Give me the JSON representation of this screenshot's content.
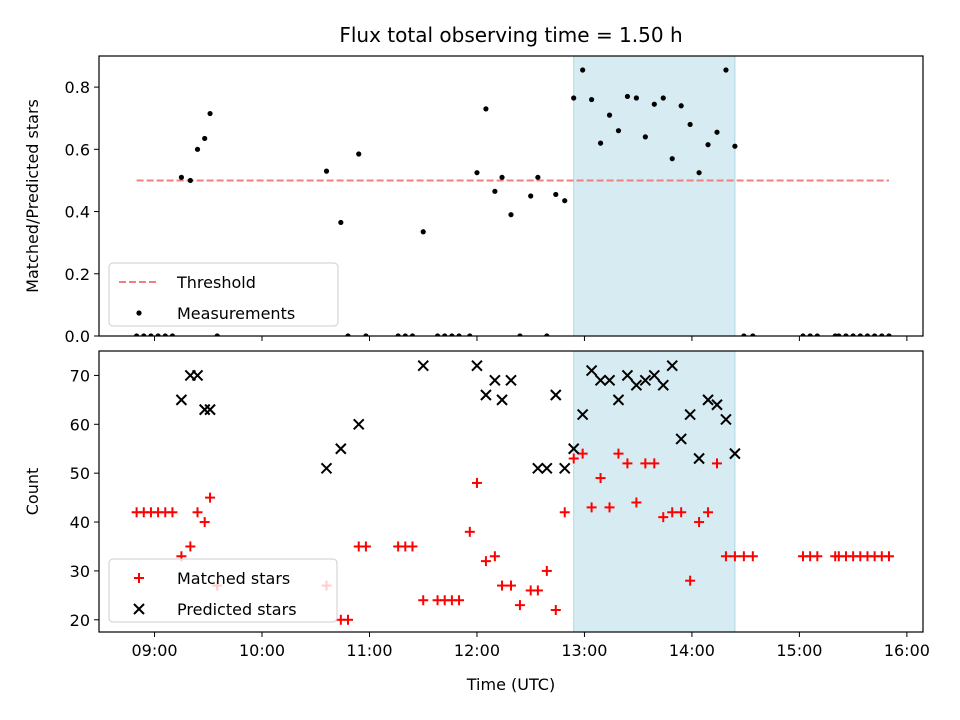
{
  "figure": {
    "title": "Flux total observing time = 1.50 h"
  },
  "chart_data": [
    {
      "type": "scatter",
      "ylabel": "Matched/Predicted stars",
      "ylim": [
        0,
        0.9
      ],
      "yticks": [
        0.0,
        0.2,
        0.4,
        0.6,
        0.8
      ],
      "ytick_labels": [
        "0.0",
        "0.2",
        "0.4",
        "0.6",
        "0.8"
      ],
      "xlim": [
        "08:29",
        "16:09"
      ],
      "xticks": [
        "09:00",
        "10:00",
        "11:00",
        "12:00",
        "13:00",
        "14:00",
        "15:00",
        "16:00"
      ],
      "shaded_interval": [
        "12:54",
        "14:24"
      ],
      "shaded_color": "#add8e6",
      "legend_position": "lower-left",
      "series": [
        {
          "name": "Threshold",
          "style": "dashed-line",
          "color": "#f08080",
          "x": [
            "08:50",
            "15:50"
          ],
          "y": [
            0.5,
            0.5
          ]
        },
        {
          "name": "Measurements",
          "style": "dot",
          "color": "#000000",
          "x": [
            "08:50",
            "08:54",
            "08:58",
            "09:02",
            "09:06",
            "09:10",
            "09:15",
            "09:20",
            "09:24",
            "09:28",
            "09:31",
            "09:35",
            "10:36",
            "10:44",
            "10:48",
            "10:54",
            "10:58",
            "11:16",
            "11:20",
            "11:24",
            "11:30",
            "11:38",
            "11:42",
            "11:46",
            "11:50",
            "11:56",
            "12:00",
            "12:05",
            "12:10",
            "12:14",
            "12:19",
            "12:24",
            "12:30",
            "12:34",
            "12:39",
            "12:44",
            "12:49",
            "12:54",
            "12:59",
            "13:04",
            "13:09",
            "13:14",
            "13:19",
            "13:24",
            "13:29",
            "13:34",
            "13:39",
            "13:44",
            "13:49",
            "13:54",
            "13:59",
            "14:04",
            "14:09",
            "14:14",
            "14:19",
            "14:24",
            "14:29",
            "14:34",
            "15:02",
            "15:06",
            "15:10",
            "15:20",
            "15:22",
            "15:26",
            "15:30",
            "15:34",
            "15:38",
            "15:42",
            "15:46",
            "15:50"
          ],
          "y": [
            0,
            0,
            0,
            0,
            0,
            0,
            0.51,
            0.5,
            0.6,
            0.635,
            0.715,
            0,
            0.53,
            0.365,
            0,
            0.585,
            0,
            0,
            0,
            0,
            0.335,
            0,
            0,
            0,
            0,
            0,
            0.525,
            0.73,
            0.465,
            0.51,
            0.39,
            0,
            0.45,
            0.51,
            0,
            0.455,
            0.435,
            0.765,
            0.855,
            0.76,
            0.62,
            0.71,
            0.66,
            0.77,
            0.765,
            0.64,
            0.745,
            0.765,
            0.57,
            0.74,
            0.68,
            0.525,
            0.615,
            0.655,
            0.855,
            0.61,
            0,
            0,
            0,
            0,
            0,
            0,
            0,
            0,
            0,
            0,
            0,
            0,
            0,
            0
          ]
        }
      ]
    },
    {
      "type": "scatter",
      "ylabel": "Count",
      "xlabel": "Time (UTC)",
      "ylim": [
        17.5,
        75
      ],
      "yticks": [
        20,
        30,
        40,
        50,
        60,
        70
      ],
      "ytick_labels": [
        "20",
        "30",
        "40",
        "50",
        "60",
        "70"
      ],
      "xlim": [
        "08:29",
        "16:09"
      ],
      "xticks": [
        "09:00",
        "10:00",
        "11:00",
        "12:00",
        "13:00",
        "14:00",
        "15:00",
        "16:00"
      ],
      "shaded_interval": [
        "12:54",
        "14:24"
      ],
      "shaded_color": "#add8e6",
      "legend_position": "lower-left",
      "series": [
        {
          "name": "Matched stars",
          "marker": "plus",
          "color": "#ff0000",
          "x": [
            "08:50",
            "08:54",
            "08:58",
            "09:02",
            "09:06",
            "09:10",
            "09:15",
            "09:20",
            "09:24",
            "09:28",
            "09:31",
            "09:35",
            "10:36",
            "10:44",
            "10:48",
            "10:54",
            "10:58",
            "11:16",
            "11:20",
            "11:24",
            "11:30",
            "11:38",
            "11:42",
            "11:46",
            "11:50",
            "11:56",
            "12:00",
            "12:05",
            "12:10",
            "12:14",
            "12:19",
            "12:24",
            "12:30",
            "12:34",
            "12:39",
            "12:44",
            "12:49",
            "12:54",
            "12:59",
            "13:04",
            "13:09",
            "13:14",
            "13:19",
            "13:24",
            "13:29",
            "13:34",
            "13:39",
            "13:44",
            "13:49",
            "13:54",
            "13:59",
            "14:04",
            "14:09",
            "14:14",
            "14:19",
            "14:24",
            "14:29",
            "14:34",
            "15:02",
            "15:06",
            "15:10",
            "15:20",
            "15:22",
            "15:26",
            "15:30",
            "15:34",
            "15:38",
            "15:42",
            "15:46",
            "15:50"
          ],
          "y": [
            42,
            42,
            42,
            42,
            42,
            42,
            33,
            35,
            42,
            40,
            45,
            27,
            27,
            20,
            20,
            35,
            35,
            35,
            35,
            35,
            24,
            24,
            24,
            24,
            24,
            38,
            48,
            32,
            33,
            27,
            27,
            23,
            26,
            26,
            30,
            22,
            42,
            53,
            54,
            43,
            49,
            43,
            54,
            52,
            44,
            52,
            52,
            41,
            42,
            42,
            28,
            40,
            42,
            52,
            33,
            33,
            33,
            33,
            33,
            33,
            33,
            33,
            33,
            33,
            33,
            33,
            33,
            33,
            33,
            33
          ]
        },
        {
          "name": "Predicted stars",
          "marker": "x",
          "color": "#000000",
          "x": [
            "09:15",
            "09:20",
            "09:24",
            "09:28",
            "09:31",
            "10:36",
            "10:44",
            "10:54",
            "11:30",
            "12:00",
            "12:05",
            "12:10",
            "12:14",
            "12:19",
            "12:34",
            "12:39",
            "12:44",
            "12:49",
            "12:54",
            "12:59",
            "13:04",
            "13:09",
            "13:14",
            "13:19",
            "13:24",
            "13:29",
            "13:34",
            "13:39",
            "13:44",
            "13:49",
            "13:54",
            "13:59",
            "14:04",
            "14:09",
            "14:14",
            "14:19",
            "14:24"
          ],
          "y": [
            65,
            70,
            70,
            63,
            63,
            51,
            55,
            60,
            72,
            72,
            66,
            69,
            65,
            69,
            51,
            51,
            66,
            51,
            55,
            62,
            71,
            69,
            69,
            65,
            70,
            68,
            69,
            70,
            68,
            72,
            57,
            62,
            53,
            65,
            64,
            61,
            54
          ]
        }
      ]
    }
  ]
}
